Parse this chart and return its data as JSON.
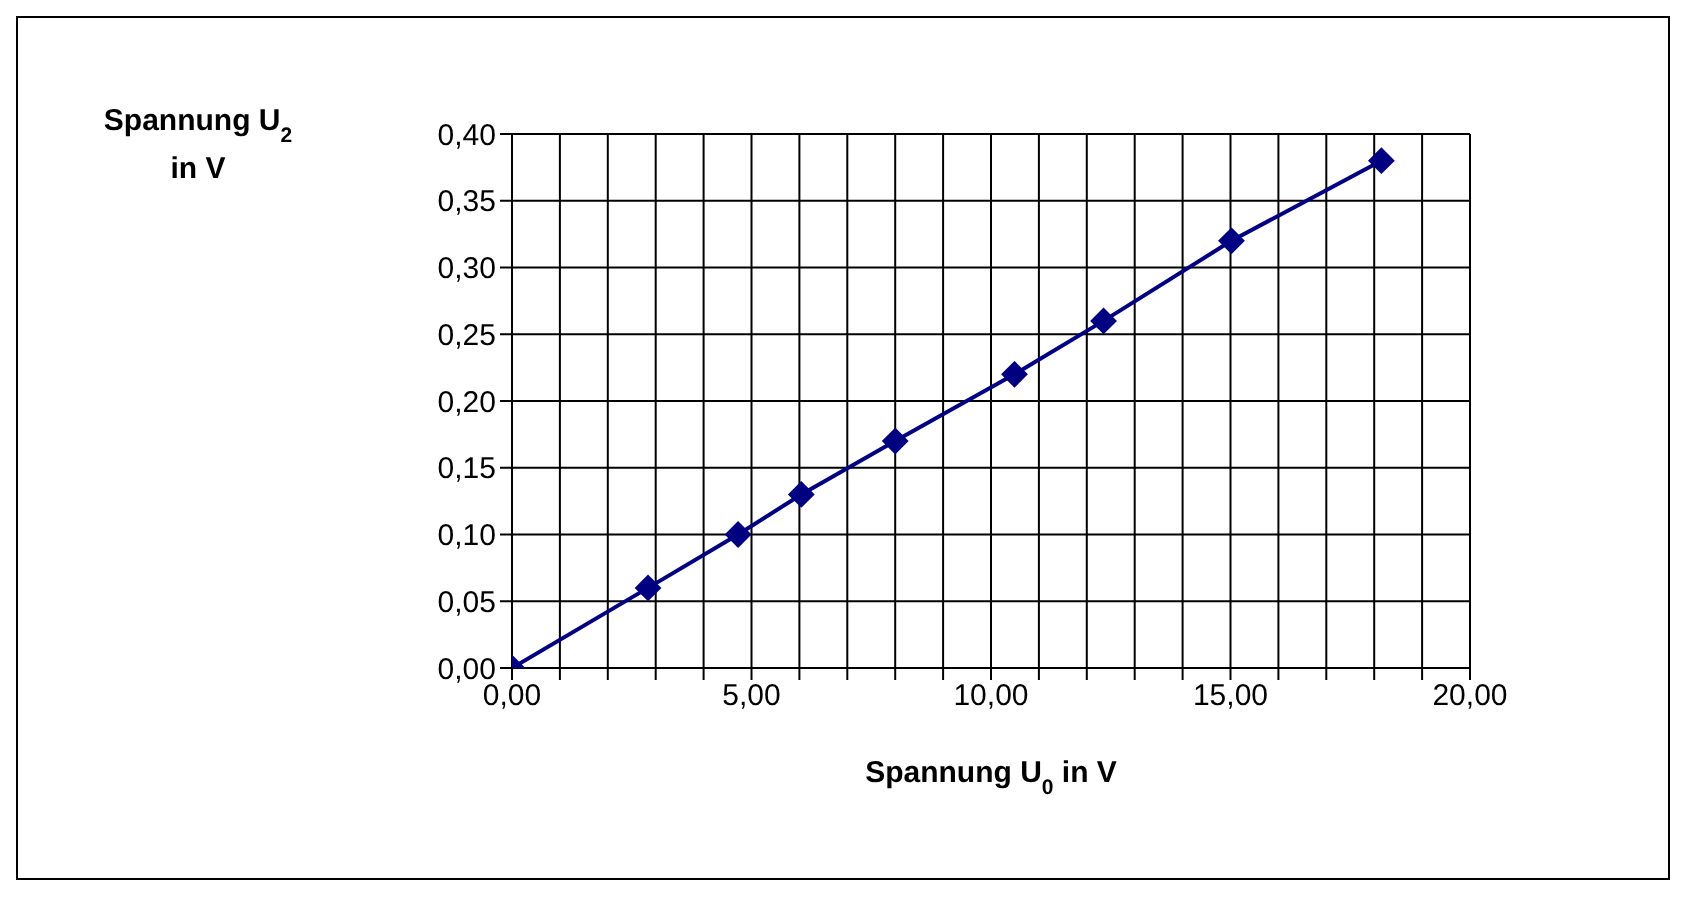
{
  "chart_data": {
    "type": "line",
    "xlabel": "Spannung U$_{0}$ in V",
    "ylabel": "Spannung U$_{2}$ in V",
    "x": [
      0,
      2.84,
      4.72,
      6.04,
      8.0,
      10.49,
      12.35,
      15.02,
      18.15
    ],
    "series": [
      {
        "color": "#000080",
        "values": [
          0,
          0.06,
          0.1,
          0.13,
          0.17,
          0.22,
          0.26,
          0.32,
          0.38
        ]
      }
    ],
    "xlim": [
      0,
      20
    ],
    "xticks": [
      {
        "value": 0,
        "label": "0,00"
      },
      {
        "value": 1,
        "label": null
      },
      {
        "value": 2,
        "label": null
      },
      {
        "value": 3,
        "label": null
      },
      {
        "value": 4,
        "label": null
      },
      {
        "value": 5,
        "label": "5,00"
      },
      {
        "value": 6,
        "label": null
      },
      {
        "value": 7,
        "label": null
      },
      {
        "value": 8,
        "label": null
      },
      {
        "value": 9,
        "label": null
      },
      {
        "value": 10,
        "label": "10,00"
      },
      {
        "value": 11,
        "label": null
      },
      {
        "value": 12,
        "label": null
      },
      {
        "value": 13,
        "label": null
      },
      {
        "value": 14,
        "label": null
      },
      {
        "value": 15,
        "label": "15,00"
      },
      {
        "value": 16,
        "label": null
      },
      {
        "value": 17,
        "label": null
      },
      {
        "value": 18,
        "label": null
      },
      {
        "value": 19,
        "label": null
      },
      {
        "value": 20,
        "label": "20,00"
      }
    ],
    "ylim": [
      0,
      0.4
    ],
    "yticks": [
      {
        "value": 0,
        "label": "0,00"
      },
      {
        "value": 0.05,
        "label": "0,05"
      },
      {
        "value": 0.1,
        "label": "0,10"
      },
      {
        "value": 0.15,
        "label": "0,15"
      },
      {
        "value": 0.2,
        "label": "0,20"
      },
      {
        "value": 0.25,
        "label": "0,25"
      },
      {
        "value": 0.3,
        "label": "0,30"
      },
      {
        "value": 0.35,
        "label": "0,35"
      },
      {
        "value": 0.4,
        "label": "0,40"
      }
    ],
    "grid": true,
    "legend": false,
    "marker": "diamond",
    "line_style": "solid"
  }
}
